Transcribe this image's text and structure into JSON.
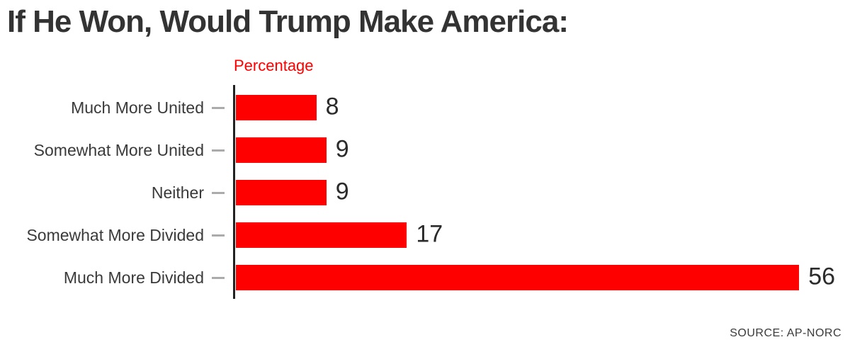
{
  "title": "If He Won, Would Trump Make America:",
  "axis_label": "Percentage",
  "source": "SOURCE: AP-NORC",
  "colors": {
    "bar": "#ff0000",
    "accent_red": "#ff0000",
    "axis_line": "#222222",
    "tick": "#ababab",
    "title_text": "#333333",
    "label_text": "#3a3a3a",
    "value_text": "#2b2b2b"
  },
  "chart_data": {
    "type": "bar",
    "orientation": "horizontal",
    "title": "If He Won, Would Trump Make America:",
    "xlabel": "Percentage",
    "ylabel": "",
    "categories": [
      "Much More United",
      "Somewhat More United",
      "Neither",
      "Somewhat More Divided",
      "Much More Divided"
    ],
    "values": [
      8,
      9,
      9,
      17,
      56
    ],
    "xlim": [
      0,
      60
    ],
    "grid": false,
    "legend": null,
    "value_labels": true,
    "source": "SOURCE: AP-NORC"
  }
}
